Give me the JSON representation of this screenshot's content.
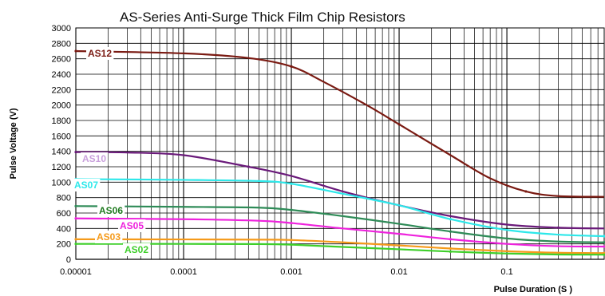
{
  "chart_data": {
    "type": "line",
    "title": "AS-Series Anti-Surge Thick Film Chip Resistors",
    "xlabel": "Pulse Duration (S )",
    "ylabel": "Pulse  Voltage (V)",
    "x_scale": "log",
    "xlim": [
      1e-05,
      0.8
    ],
    "ylim": [
      0,
      3000
    ],
    "x_ticks": [
      "0.00001",
      "0.0001",
      "0.001",
      "0.01",
      "0.1"
    ],
    "y_ticks": [
      "0",
      "200",
      "400",
      "600",
      "800",
      "1000",
      "1200",
      "1400",
      "1600",
      "1800",
      "2000",
      "2200",
      "2400",
      "2600",
      "2800",
      "3000"
    ],
    "grid": true,
    "series": [
      {
        "name": "AS12",
        "color": "#7a1a12",
        "label_color": "#7a1a12",
        "points": [
          [
            1e-05,
            2700
          ],
          [
            0.0001,
            2670
          ],
          [
            0.0004,
            2610
          ],
          [
            0.001,
            2500
          ],
          [
            0.002,
            2300
          ],
          [
            0.005,
            2000
          ],
          [
            0.01,
            1750
          ],
          [
            0.03,
            1350
          ],
          [
            0.07,
            1050
          ],
          [
            0.15,
            880
          ],
          [
            0.3,
            820
          ],
          [
            0.8,
            810
          ]
        ]
      },
      {
        "name": "AS10",
        "color": "#6a1a7a",
        "label_color": "#c9a0dc",
        "points": [
          [
            1e-05,
            1390
          ],
          [
            3e-05,
            1385
          ],
          [
            0.0001,
            1350
          ],
          [
            0.0004,
            1200
          ],
          [
            0.001,
            1080
          ],
          [
            0.003,
            880
          ],
          [
            0.01,
            700
          ],
          [
            0.03,
            560
          ],
          [
            0.1,
            450
          ],
          [
            0.3,
            410
          ],
          [
            0.8,
            400
          ]
        ]
      },
      {
        "name": "AS07",
        "color": "#2de8ea",
        "label_color": "#2de8ea",
        "points": [
          [
            1e-05,
            1040
          ],
          [
            0.0001,
            1030
          ],
          [
            0.0005,
            1015
          ],
          [
            0.001,
            980
          ],
          [
            0.003,
            850
          ],
          [
            0.01,
            700
          ],
          [
            0.03,
            520
          ],
          [
            0.1,
            380
          ],
          [
            0.3,
            320
          ],
          [
            0.8,
            300
          ]
        ]
      },
      {
        "name": "AS06",
        "color": "#2e8b57",
        "label_color": "#1f7a1f",
        "points": [
          [
            1e-05,
            690
          ],
          [
            0.0001,
            680
          ],
          [
            0.0005,
            670
          ],
          [
            0.001,
            640
          ],
          [
            0.003,
            560
          ],
          [
            0.01,
            460
          ],
          [
            0.03,
            360
          ],
          [
            0.1,
            270
          ],
          [
            0.3,
            230
          ],
          [
            0.8,
            220
          ]
        ]
      },
      {
        "name": "AS05",
        "color": "#ee22dd",
        "label_color": "#ee22dd",
        "points": [
          [
            1e-05,
            530
          ],
          [
            0.0001,
            520
          ],
          [
            0.0005,
            500
          ],
          [
            0.001,
            470
          ],
          [
            0.003,
            400
          ],
          [
            0.01,
            330
          ],
          [
            0.03,
            260
          ],
          [
            0.1,
            200
          ],
          [
            0.3,
            170
          ],
          [
            0.8,
            165
          ]
        ]
      },
      {
        "name": "AS03",
        "color": "#f59a1a",
        "label_color": "#f59a1a",
        "points": [
          [
            1e-05,
            260
          ],
          [
            0.0001,
            258
          ],
          [
            0.0005,
            255
          ],
          [
            0.001,
            250
          ],
          [
            0.003,
            220
          ],
          [
            0.01,
            180
          ],
          [
            0.03,
            140
          ],
          [
            0.1,
            105
          ],
          [
            0.3,
            85
          ],
          [
            0.8,
            80
          ]
        ]
      },
      {
        "name": "AS02",
        "color": "#3ecf2a",
        "label_color": "#3ecf2a",
        "points": [
          [
            1e-05,
            200
          ],
          [
            0.0001,
            200
          ],
          [
            0.0005,
            198
          ],
          [
            0.001,
            190
          ],
          [
            0.003,
            160
          ],
          [
            0.01,
            130
          ],
          [
            0.03,
            100
          ],
          [
            0.1,
            75
          ],
          [
            0.3,
            62
          ],
          [
            0.8,
            60
          ]
        ]
      }
    ]
  }
}
